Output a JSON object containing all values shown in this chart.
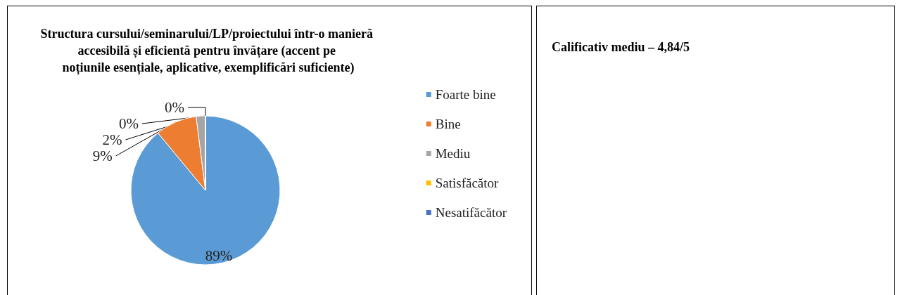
{
  "chart_data": [
    {
      "type": "pie",
      "title": "Structura cursului/seminarului/LP/proiectului într-o manieră accesibilă și eficientă pentru învățare (accent pe noțiunile esențiale, aplicative, exemplificări suficiente)",
      "categories": [
        "Foarte bine",
        "Bine",
        "Mediu",
        "Satisfăcător",
        "Nesatifăcător"
      ],
      "values": [
        89,
        9,
        2,
        0,
        0
      ],
      "value_labels": [
        "89%",
        "9%",
        "2%",
        "0%",
        "0%"
      ],
      "colors": [
        "#5b9bd5",
        "#ed7d31",
        "#a5a5a5",
        "#ffc000",
        "#4472c4"
      ],
      "legend": "right"
    },
    {
      "type": "other",
      "title": "Calificativ mediu – 4,84/5"
    }
  ]
}
